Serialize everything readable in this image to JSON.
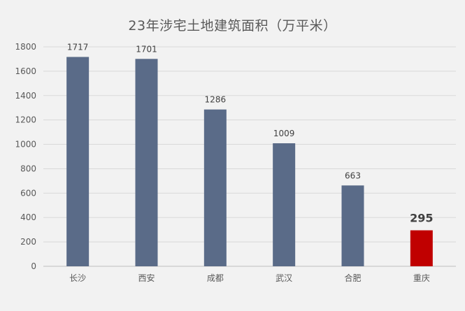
{
  "chart_data": {
    "type": "bar",
    "title": "23年涉宅土地建筑面积（万平米）",
    "xlabel": "",
    "ylabel": "",
    "categories": [
      "长沙",
      "西安",
      "成都",
      "武汉",
      "合肥",
      "重庆"
    ],
    "values": [
      1717,
      1701,
      1286,
      1009,
      663,
      295
    ],
    "ylim": [
      0,
      1800
    ],
    "yticks": [
      0,
      200,
      400,
      600,
      800,
      1000,
      1200,
      1400,
      1600,
      1800
    ],
    "grid": true,
    "legend": "none",
    "colors": {
      "bar": "#5a6b88",
      "highlight": "#c00000",
      "grid": "#d9d9d9",
      "axis": "#bfbfbf",
      "background": "#f2f2f2"
    },
    "highlight_category": "重庆"
  }
}
